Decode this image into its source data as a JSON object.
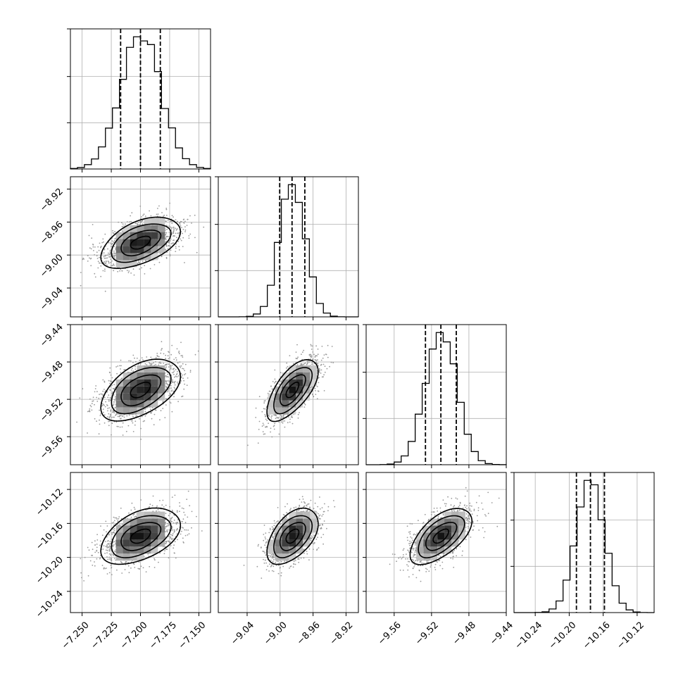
{
  "chart_data": {
    "type": "corner",
    "title": "",
    "n_params": 4,
    "params": [
      {
        "label": "",
        "mean": -7.2,
        "std": 0.017,
        "quantiles": [
          -7.217,
          -7.2,
          -7.183
        ],
        "range": [
          -7.26,
          -7.14
        ],
        "ticks": [
          -7.25,
          -7.225,
          -7.2,
          -7.175,
          -7.15
        ],
        "tick_labels": [
          "−7.250",
          "−7.225",
          "−7.200",
          "−7.175",
          "−7.150"
        ]
      },
      {
        "label": "",
        "mean": -8.985,
        "std": 0.0155,
        "quantiles": [
          -9.0005,
          -8.9855,
          -8.97
        ],
        "range": [
          -9.075,
          -8.905
        ],
        "ticks": [
          -9.04,
          -9.0,
          -8.96,
          -8.92
        ],
        "tick_labels": [
          "−9.04",
          "−9.00",
          "−8.96",
          "−8.92"
        ]
      },
      {
        "label": "",
        "mean": -9.51,
        "std": 0.0165,
        "quantiles": [
          -9.5265,
          -9.51,
          -9.4935
        ],
        "range": [
          -9.59,
          -9.44
        ],
        "ticks": [
          -9.56,
          -9.52,
          -9.48,
          -9.44
        ],
        "tick_labels": [
          "−9.56",
          "−9.52",
          "−9.48",
          "−9.44"
        ]
      },
      {
        "label": "",
        "mean": -10.175,
        "std": 0.0165,
        "quantiles": [
          -10.1915,
          -10.175,
          -10.1585
        ],
        "range": [
          -10.265,
          -10.1
        ],
        "ticks": [
          -10.24,
          -10.2,
          -10.16,
          -10.12
        ],
        "tick_labels": [
          "−10.24",
          "−10.20",
          "−10.16",
          "−10.12"
        ]
      }
    ],
    "correlations": [
      [
        1,
        0.5,
        0.5,
        0.45
      ],
      [
        0.5,
        1,
        0.65,
        0.5
      ],
      [
        0.5,
        0.65,
        1,
        0.6
      ],
      [
        0.45,
        0.5,
        0.6,
        1
      ]
    ],
    "grid": true,
    "colors": {
      "line": "#000000",
      "points": "#9a9a9a",
      "grid": "#b0b0b0"
    }
  }
}
